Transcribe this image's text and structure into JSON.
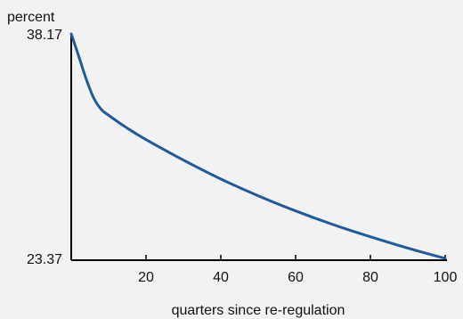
{
  "chart_data": {
    "type": "line",
    "title": "",
    "xlabel": "quarters since re-regulation",
    "ylabel": "percent",
    "xlim": [
      0,
      100
    ],
    "ylim": [
      23.37,
      38.17
    ],
    "x_ticks": [
      20,
      40,
      60,
      80,
      100
    ],
    "x_tick_labels": [
      "20",
      "40",
      "60",
      "80",
      "100"
    ],
    "y_ticks": [
      23.37,
      38.17
    ],
    "y_tick_labels": [
      "23.37",
      "38.17"
    ],
    "grid": false,
    "line_color": "#1f5a9a",
    "series": [
      {
        "x": [
          0,
          2,
          4,
          6,
          8,
          10,
          15,
          20,
          30,
          40,
          50,
          60,
          70,
          80,
          90,
          100
        ],
        "values": [
          38.17,
          36.7,
          35.2,
          33.95,
          33.2,
          32.8,
          31.95,
          31.2,
          29.85,
          28.6,
          27.5,
          26.5,
          25.6,
          24.8,
          24.05,
          23.37
        ]
      }
    ]
  }
}
